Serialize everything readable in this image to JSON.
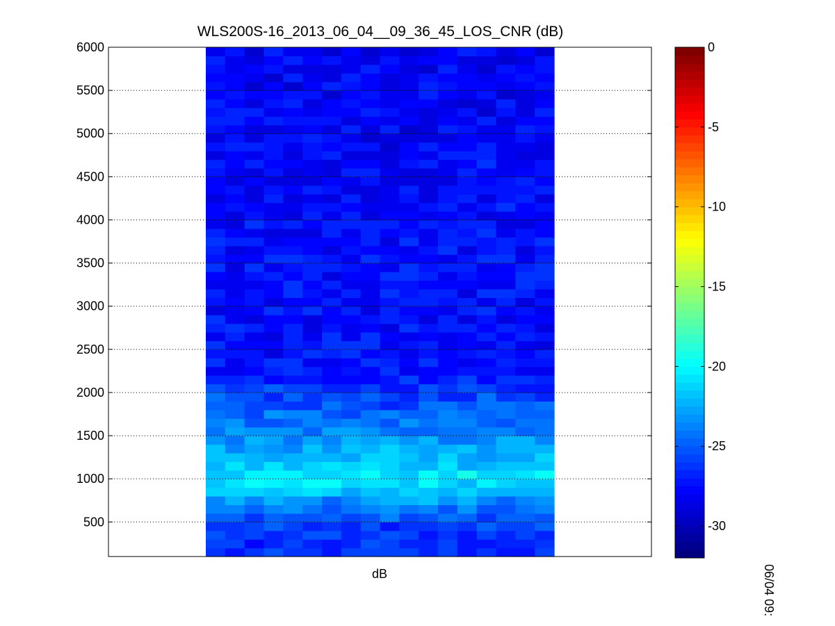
{
  "chart_data": {
    "type": "heatmap",
    "title": "WLS200S-16_2013_06_04__09_36_45_LOS_CNR (dB)",
    "xlabel": "dB",
    "ylabel": "",
    "ylim": [
      100,
      6000
    ],
    "y_ticks": [
      500,
      1000,
      1500,
      2000,
      2500,
      3000,
      3500,
      4000,
      4500,
      5000,
      5500,
      6000
    ],
    "y_tick_labels": [
      "500",
      "1000",
      "1500",
      "2000",
      "2500",
      "3000",
      "3500",
      "4000",
      "4500",
      "5000",
      "5500",
      "6000"
    ],
    "grid": "y-dotted",
    "columns": 18,
    "rows": 59,
    "colorscale": "jet",
    "clim": [
      -32,
      0
    ],
    "colorbar_ticks": [
      0,
      -5,
      -10,
      -15,
      -20,
      -25,
      -30
    ],
    "colorbar_tick_labels": [
      "0",
      "-5",
      "-10",
      "-15",
      "-20",
      "-25",
      "-30"
    ],
    "value_profile": {
      "description": "approximate CNR by range",
      "range": [
        100,
        300,
        500,
        700,
        800,
        900,
        1000,
        1100,
        1200,
        1400,
        1600,
        1800,
        2000,
        2200,
        2500,
        3500,
        6000
      ],
      "cnr_db": [
        -26.5,
        -26.5,
        -25.5,
        -24,
        -22.5,
        -21,
        -20.5,
        -21,
        -22,
        -23,
        -24,
        -25,
        -26,
        -27,
        -27.5,
        -27.5,
        -28
      ]
    },
    "side_label": "06/04 09:"
  }
}
